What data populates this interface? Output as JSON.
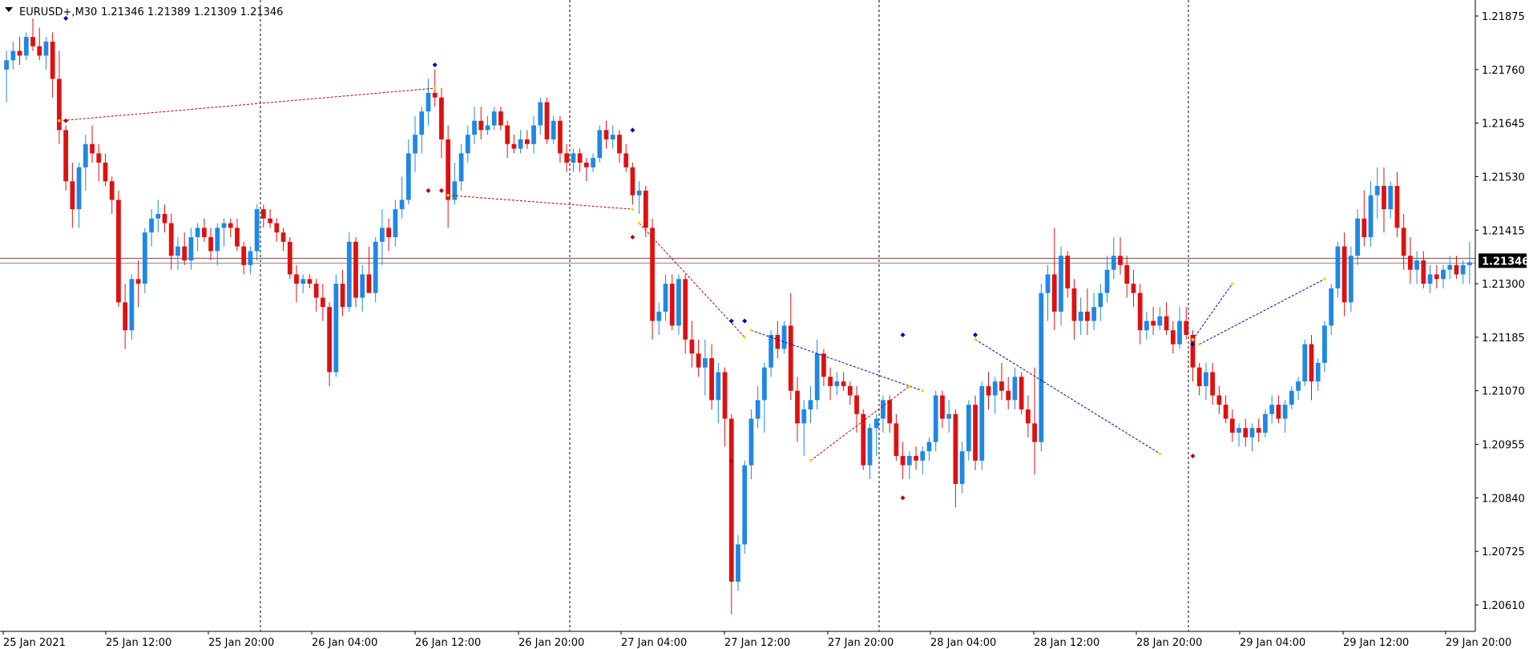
{
  "header": {
    "collapse_icon": "triangle-down-icon",
    "symbol": "EURUSD+,M30",
    "quote": "1.21346 1.21389 1.21309 1.21346"
  },
  "chart_data": {
    "type": "candlestick",
    "symbol": "EURUSD+",
    "timeframe": "M30",
    "y_ticks": [
      "1.21875",
      "1.21760",
      "1.21645",
      "1.21530",
      "1.21415",
      "1.21300",
      "1.21185",
      "1.21070",
      "1.20955",
      "1.20840",
      "1.20725",
      "1.20610"
    ],
    "ylim": [
      1.2056,
      1.2196
    ],
    "x_ticks": [
      "25 Jan 2021",
      "25 Jan 12:00",
      "25 Jan 20:00",
      "26 Jan 04:00",
      "26 Jan 12:00",
      "26 Jan 20:00",
      "27 Jan 04:00",
      "27 Jan 12:00",
      "27 Jan 20:00",
      "28 Jan 04:00",
      "28 Jan 12:00",
      "28 Jan 20:00",
      "29 Jan 04:00",
      "29 Jan 12:00",
      "29 Jan 20:00"
    ],
    "current_price": "1.21346",
    "grid": false,
    "colors": {
      "bull": "#1e88e5",
      "bear": "#e01010",
      "day_separator": "#000000",
      "bid_line": "#9e3b3b",
      "ask_line": "#8a8a8a",
      "price_label_bg": "#000000",
      "up_zigzag": "#0000c0",
      "down_zigzag": "#c00000",
      "pivot_marker": "#ffd700"
    },
    "ohlc": [
      [
        1.2176,
        1.218,
        1.2169,
        1.2178
      ],
      [
        1.2178,
        1.2182,
        1.2176,
        1.218
      ],
      [
        1.218,
        1.2183,
        1.2177,
        1.2179
      ],
      [
        1.2179,
        1.2184,
        1.2178,
        1.2183
      ],
      [
        1.2183,
        1.2187,
        1.218,
        1.2181
      ],
      [
        1.2181,
        1.2185,
        1.2178,
        1.2179
      ],
      [
        1.2179,
        1.2183,
        1.2176,
        1.2182
      ],
      [
        1.2182,
        1.2184,
        1.217,
        1.2174
      ],
      [
        1.2174,
        1.218,
        1.216,
        1.2163
      ],
      [
        1.2163,
        1.2164,
        1.215,
        1.2152
      ],
      [
        1.2152,
        1.2156,
        1.2142,
        1.2146
      ],
      [
        1.2146,
        1.2156,
        1.2142,
        1.2155
      ],
      [
        1.2155,
        1.2162,
        1.215,
        1.216
      ],
      [
        1.216,
        1.2164,
        1.2156,
        1.2158
      ],
      [
        1.2158,
        1.216,
        1.2152,
        1.2156
      ],
      [
        1.2156,
        1.2158,
        1.2151,
        1.2152
      ],
      [
        1.2152,
        1.2153,
        1.2145,
        1.2148
      ],
      [
        1.2148,
        1.215,
        1.2125,
        1.2126
      ],
      [
        1.2126,
        1.213,
        1.2116,
        1.212
      ],
      [
        1.212,
        1.2132,
        1.2118,
        1.2131
      ],
      [
        1.2131,
        1.2135,
        1.2125,
        1.213
      ],
      [
        1.213,
        1.2142,
        1.2128,
        1.2141
      ],
      [
        1.2141,
        1.2146,
        1.2138,
        1.2144
      ],
      [
        1.2144,
        1.2148,
        1.2141,
        1.2145
      ],
      [
        1.2145,
        1.2147,
        1.2141,
        1.2143
      ],
      [
        1.2143,
        1.2145,
        1.2133,
        1.2136
      ],
      [
        1.2136,
        1.214,
        1.2133,
        1.2138
      ],
      [
        1.2138,
        1.2141,
        1.2134,
        1.2135
      ],
      [
        1.2135,
        1.2142,
        1.2133,
        1.214
      ],
      [
        1.214,
        1.2143,
        1.2137,
        1.2142
      ],
      [
        1.2142,
        1.2144,
        1.2139,
        1.214
      ],
      [
        1.214,
        1.2142,
        1.2135,
        1.2137
      ],
      [
        1.2137,
        1.2143,
        1.2134,
        1.2142
      ],
      [
        1.2142,
        1.2144,
        1.2138,
        1.2143
      ],
      [
        1.2143,
        1.2144,
        1.214,
        1.2142
      ],
      [
        1.2142,
        1.2144,
        1.2137,
        1.2138
      ],
      [
        1.2138,
        1.2139,
        1.2132,
        1.2134
      ],
      [
        1.2134,
        1.2138,
        1.2132,
        1.2137
      ],
      [
        1.2137,
        1.2147,
        1.2135,
        1.2146
      ],
      [
        1.2146,
        1.2147,
        1.2142,
        1.2144
      ],
      [
        1.2144,
        1.2146,
        1.2142,
        1.2143
      ],
      [
        1.2143,
        1.2144,
        1.2139,
        1.2141
      ],
      [
        1.2141,
        1.2142,
        1.2137,
        1.2139
      ],
      [
        1.2139,
        1.214,
        1.2131,
        1.2132
      ],
      [
        1.2132,
        1.2134,
        1.2126,
        1.213
      ],
      [
        1.213,
        1.2132,
        1.2128,
        1.2131
      ],
      [
        1.2131,
        1.2132,
        1.2129,
        1.213
      ],
      [
        1.213,
        1.2131,
        1.2124,
        1.2127
      ],
      [
        1.2127,
        1.213,
        1.2122,
        1.2125
      ],
      [
        1.2125,
        1.2126,
        1.2108,
        1.2111
      ],
      [
        1.2111,
        1.2132,
        1.211,
        1.213
      ],
      [
        1.213,
        1.2133,
        1.2123,
        1.2125
      ],
      [
        1.2125,
        1.2141,
        1.2124,
        1.2139
      ],
      [
        1.2139,
        1.214,
        1.2125,
        1.2127
      ],
      [
        1.2127,
        1.2134,
        1.2124,
        1.2132
      ],
      [
        1.2132,
        1.2138,
        1.2128,
        1.2128
      ],
      [
        1.2128,
        1.214,
        1.2126,
        1.2139
      ],
      [
        1.2139,
        1.2146,
        1.2134,
        1.2142
      ],
      [
        1.2142,
        1.2144,
        1.2137,
        1.214
      ],
      [
        1.214,
        1.2148,
        1.2138,
        1.2146
      ],
      [
        1.2146,
        1.2153,
        1.2144,
        1.2148
      ],
      [
        1.2148,
        1.2161,
        1.2147,
        1.2158
      ],
      [
        1.2158,
        1.2166,
        1.2154,
        1.2162
      ],
      [
        1.2162,
        1.2168,
        1.2158,
        1.2167
      ],
      [
        1.2167,
        1.2174,
        1.2164,
        1.2171
      ],
      [
        1.2171,
        1.2176,
        1.2168,
        1.217
      ],
      [
        1.217,
        1.2172,
        1.2157,
        1.2161
      ],
      [
        1.2161,
        1.2164,
        1.2142,
        1.2148
      ],
      [
        1.2148,
        1.2156,
        1.2147,
        1.2152
      ],
      [
        1.2152,
        1.216,
        1.215,
        1.2158
      ],
      [
        1.2158,
        1.2164,
        1.2156,
        1.2162
      ],
      [
        1.2162,
        1.2168,
        1.216,
        1.2165
      ],
      [
        1.2165,
        1.2168,
        1.2161,
        1.2163
      ],
      [
        1.2163,
        1.2166,
        1.2162,
        1.2164
      ],
      [
        1.2164,
        1.2168,
        1.2163,
        1.2167
      ],
      [
        1.2167,
        1.2168,
        1.2163,
        1.2164
      ],
      [
        1.2164,
        1.2165,
        1.2157,
        1.216
      ],
      [
        1.216,
        1.2162,
        1.2158,
        1.2159
      ],
      [
        1.2159,
        1.2163,
        1.2158,
        1.2161
      ],
      [
        1.2161,
        1.2163,
        1.2159,
        1.216
      ],
      [
        1.216,
        1.2166,
        1.2158,
        1.2164
      ],
      [
        1.2164,
        1.217,
        1.2162,
        1.2169
      ],
      [
        1.2169,
        1.217,
        1.216,
        1.2161
      ],
      [
        1.2161,
        1.2166,
        1.216,
        1.2165
      ],
      [
        1.2165,
        1.2166,
        1.2156,
        1.2158
      ],
      [
        1.2158,
        1.216,
        1.2154,
        1.2156
      ],
      [
        1.2156,
        1.2159,
        1.2154,
        1.2158
      ],
      [
        1.2158,
        1.2159,
        1.2154,
        1.2156
      ],
      [
        1.2156,
        1.2157,
        1.2152,
        1.2155
      ],
      [
        1.2155,
        1.2158,
        1.2154,
        1.2157
      ],
      [
        1.2157,
        1.2164,
        1.2156,
        1.2163
      ],
      [
        1.2163,
        1.2165,
        1.2159,
        1.2161
      ],
      [
        1.2161,
        1.2164,
        1.2159,
        1.2162
      ],
      [
        1.2162,
        1.2163,
        1.2156,
        1.2158
      ],
      [
        1.2158,
        1.216,
        1.2154,
        1.2155
      ],
      [
        1.2155,
        1.2156,
        1.2147,
        1.2149
      ],
      [
        1.2149,
        1.2152,
        1.2145,
        1.215
      ],
      [
        1.215,
        1.2151,
        1.214,
        1.2142
      ],
      [
        1.2142,
        1.2144,
        1.2118,
        1.2122
      ],
      [
        1.2122,
        1.2126,
        1.2119,
        1.2124
      ],
      [
        1.2124,
        1.2132,
        1.2122,
        1.213
      ],
      [
        1.213,
        1.2132,
        1.212,
        1.2121
      ],
      [
        1.2121,
        1.2132,
        1.2119,
        1.2131
      ],
      [
        1.2131,
        1.2132,
        1.2115,
        1.2118
      ],
      [
        1.2118,
        1.2122,
        1.2112,
        1.2115
      ],
      [
        1.2115,
        1.2118,
        1.211,
        1.2112
      ],
      [
        1.2112,
        1.2118,
        1.2106,
        1.2114
      ],
      [
        1.2114,
        1.2117,
        1.2103,
        1.2105
      ],
      [
        1.2105,
        1.2113,
        1.21,
        1.2111
      ],
      [
        1.2111,
        1.2112,
        1.2095,
        1.2101
      ],
      [
        1.2101,
        1.2102,
        1.2059,
        1.2066
      ],
      [
        1.2066,
        1.2076,
        1.2064,
        1.2074
      ],
      [
        1.2074,
        1.2092,
        1.2072,
        1.2091
      ],
      [
        1.2091,
        1.2103,
        1.2088,
        1.2101
      ],
      [
        1.2101,
        1.2108,
        1.2099,
        1.2105
      ],
      [
        1.2105,
        1.2113,
        1.2098,
        1.2112
      ],
      [
        1.2112,
        1.212,
        1.211,
        1.2119
      ],
      [
        1.2119,
        1.2122,
        1.2114,
        1.2116
      ],
      [
        1.2116,
        1.2122,
        1.2115,
        1.2121
      ],
      [
        1.2121,
        1.2128,
        1.2105,
        1.2107
      ],
      [
        1.2107,
        1.211,
        1.2096,
        1.21
      ],
      [
        1.21,
        1.2105,
        1.2093,
        1.2103
      ],
      [
        1.2103,
        1.2108,
        1.21,
        1.2105
      ],
      [
        1.2105,
        1.2118,
        1.2103,
        1.2115
      ],
      [
        1.2115,
        1.2116,
        1.2108,
        1.211
      ],
      [
        1.211,
        1.2112,
        1.2105,
        1.2108
      ],
      [
        1.2108,
        1.2111,
        1.2106,
        1.2109
      ],
      [
        1.2109,
        1.2111,
        1.2107,
        1.2108
      ],
      [
        1.2108,
        1.2109,
        1.2104,
        1.2106
      ],
      [
        1.2106,
        1.2108,
        1.2098,
        1.2102
      ],
      [
        1.2102,
        1.2103,
        1.209,
        1.2091
      ],
      [
        1.2091,
        1.21,
        1.2088,
        1.2099
      ],
      [
        1.2099,
        1.2102,
        1.2093,
        1.2101
      ],
      [
        1.2101,
        1.2106,
        1.2098,
        1.2105
      ],
      [
        1.2105,
        1.2106,
        1.2098,
        1.21
      ],
      [
        1.21,
        1.2102,
        1.2092,
        1.2093
      ],
      [
        1.2093,
        1.2096,
        1.2088,
        1.2091
      ],
      [
        1.2091,
        1.2094,
        1.2088,
        1.2093
      ],
      [
        1.2093,
        1.2095,
        1.209,
        1.2092
      ],
      [
        1.2092,
        1.2095,
        1.2089,
        1.2094
      ],
      [
        1.2094,
        1.2097,
        1.2092,
        1.2096
      ],
      [
        1.2096,
        1.2107,
        1.2094,
        1.2106
      ],
      [
        1.2106,
        1.2107,
        1.2099,
        1.2101
      ],
      [
        1.2101,
        1.2105,
        1.2098,
        1.2102
      ],
      [
        1.2102,
        1.2103,
        1.2082,
        1.2087
      ],
      [
        1.2087,
        1.2096,
        1.2085,
        1.2094
      ],
      [
        1.2094,
        1.2105,
        1.2092,
        1.2104
      ],
      [
        1.2104,
        1.2106,
        1.209,
        1.2092
      ],
      [
        1.2092,
        1.2109,
        1.209,
        1.2108
      ],
      [
        1.2108,
        1.2111,
        1.2103,
        1.2106
      ],
      [
        1.2106,
        1.211,
        1.2102,
        1.2109
      ],
      [
        1.2109,
        1.2113,
        1.2105,
        1.2107
      ],
      [
        1.2107,
        1.211,
        1.2103,
        1.2105
      ],
      [
        1.2105,
        1.2112,
        1.2103,
        1.211
      ],
      [
        1.211,
        1.2111,
        1.2102,
        1.2103
      ],
      [
        1.2103,
        1.2106,
        1.2097,
        1.21
      ],
      [
        1.21,
        1.2112,
        1.2089,
        1.2096
      ],
      [
        1.2096,
        1.213,
        1.2094,
        1.2128
      ],
      [
        1.2128,
        1.2134,
        1.2122,
        1.2132
      ],
      [
        1.2132,
        1.2142,
        1.212,
        1.2124
      ],
      [
        1.2124,
        1.2138,
        1.2121,
        1.2136
      ],
      [
        1.2136,
        1.2137,
        1.2127,
        1.2129
      ],
      [
        1.2129,
        1.2131,
        1.2118,
        1.2122
      ],
      [
        1.2122,
        1.2127,
        1.2119,
        1.2124
      ],
      [
        1.2124,
        1.2129,
        1.2119,
        1.2122
      ],
      [
        1.2122,
        1.2128,
        1.212,
        1.2125
      ],
      [
        1.2125,
        1.213,
        1.2122,
        1.2128
      ],
      [
        1.2128,
        1.2136,
        1.2126,
        1.2133
      ],
      [
        1.2133,
        1.214,
        1.2131,
        1.2136
      ],
      [
        1.2136,
        1.214,
        1.2132,
        1.2134
      ],
      [
        1.2134,
        1.2136,
        1.2127,
        1.213
      ],
      [
        1.213,
        1.2133,
        1.2125,
        1.2128
      ],
      [
        1.2128,
        1.213,
        1.2117,
        1.212
      ],
      [
        1.212,
        1.2124,
        1.2118,
        1.2122
      ],
      [
        1.2122,
        1.2125,
        1.2119,
        1.2121
      ],
      [
        1.2121,
        1.2125,
        1.212,
        1.2123
      ],
      [
        1.2123,
        1.2126,
        1.2119,
        1.212
      ],
      [
        1.212,
        1.2122,
        1.2115,
        1.2117
      ],
      [
        1.2117,
        1.2125,
        1.2116,
        1.2122
      ],
      [
        1.2122,
        1.2125,
        1.2118,
        1.2119
      ],
      [
        1.2119,
        1.212,
        1.2109,
        1.2112
      ],
      [
        1.2112,
        1.2113,
        1.2106,
        1.2108
      ],
      [
        1.2108,
        1.2113,
        1.2105,
        1.2111
      ],
      [
        1.2111,
        1.2113,
        1.2104,
        1.2106
      ],
      [
        1.2106,
        1.2108,
        1.2102,
        1.2104
      ],
      [
        1.2104,
        1.2106,
        1.21,
        1.2101
      ],
      [
        1.2101,
        1.2103,
        1.2096,
        1.2098
      ],
      [
        1.2098,
        1.21,
        1.2095,
        1.2099
      ],
      [
        1.2099,
        1.2101,
        1.2095,
        1.2097
      ],
      [
        1.2097,
        1.21,
        1.2094,
        1.2099
      ],
      [
        1.2099,
        1.2101,
        1.2096,
        1.2098
      ],
      [
        1.2098,
        1.2103,
        1.2097,
        1.2102
      ],
      [
        1.2102,
        1.2106,
        1.21,
        1.2104
      ],
      [
        1.2104,
        1.2106,
        1.21,
        1.2101
      ],
      [
        1.2101,
        1.2105,
        1.2098,
        1.2104
      ],
      [
        1.2104,
        1.2108,
        1.2103,
        1.2107
      ],
      [
        1.2107,
        1.211,
        1.2105,
        1.2109
      ],
      [
        1.2109,
        1.2118,
        1.2108,
        1.2117
      ],
      [
        1.2117,
        1.2119,
        1.2105,
        1.2109
      ],
      [
        1.2109,
        1.2114,
        1.2107,
        1.2113
      ],
      [
        1.2113,
        1.2122,
        1.2111,
        1.2121
      ],
      [
        1.2121,
        1.213,
        1.2119,
        1.2129
      ],
      [
        1.2129,
        1.2139,
        1.2127,
        1.2138
      ],
      [
        1.2138,
        1.2141,
        1.2123,
        1.2126
      ],
      [
        1.2126,
        1.2138,
        1.2124,
        1.2136
      ],
      [
        1.2136,
        1.2146,
        1.2134,
        1.2144
      ],
      [
        1.2144,
        1.215,
        1.2138,
        1.214
      ],
      [
        1.214,
        1.2152,
        1.2138,
        1.2149
      ],
      [
        1.2149,
        1.2155,
        1.2144,
        1.2151
      ],
      [
        1.2151,
        1.2155,
        1.2141,
        1.2146
      ],
      [
        1.2146,
        1.2152,
        1.2144,
        1.2151
      ],
      [
        1.2151,
        1.2154,
        1.214,
        1.2142
      ],
      [
        1.2142,
        1.2145,
        1.2133,
        1.2136
      ],
      [
        1.2136,
        1.214,
        1.213,
        1.2133
      ],
      [
        1.2133,
        1.2137,
        1.213,
        1.2135
      ],
      [
        1.2135,
        1.2137,
        1.2129,
        1.213
      ],
      [
        1.213,
        1.2134,
        1.2128,
        1.2132
      ],
      [
        1.2132,
        1.2134,
        1.2129,
        1.2131
      ],
      [
        1.2131,
        1.2134,
        1.2129,
        1.2133
      ],
      [
        1.2133,
        1.2136,
        1.2131,
        1.2134
      ],
      [
        1.2134,
        1.2136,
        1.2131,
        1.2132
      ],
      [
        1.2132,
        1.2135,
        1.213,
        1.2134
      ],
      [
        1.2134,
        1.2139,
        1.213,
        1.21346
      ]
    ]
  }
}
